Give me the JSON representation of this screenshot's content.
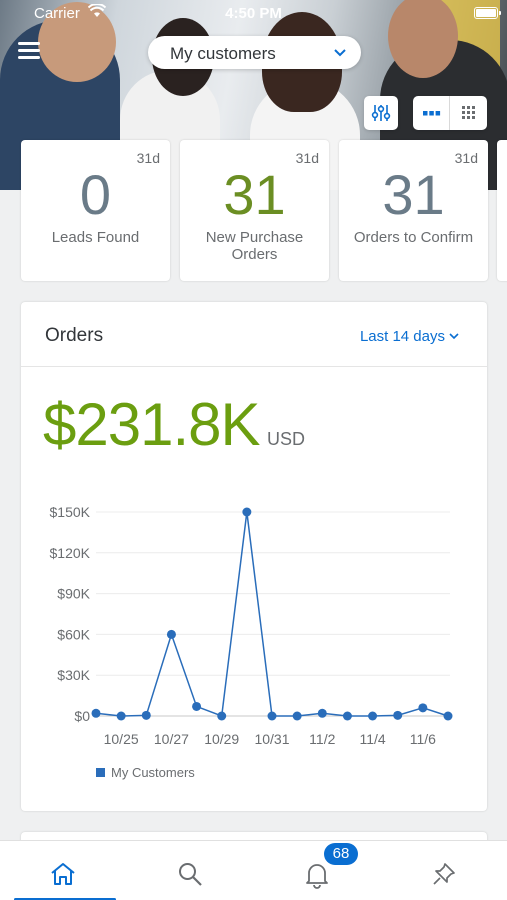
{
  "status_bar": {
    "carrier": "Carrier",
    "time": "4:50 PM"
  },
  "header": {
    "selector_label": "My customers"
  },
  "tiles": [
    {
      "period": "31d",
      "value": "0",
      "label": "Leads Found",
      "value_color": "#6a7b88"
    },
    {
      "period": "31d",
      "value": "31",
      "label": "New Purchase Orders",
      "value_color": "#6b8e23"
    },
    {
      "period": "31d",
      "value": "31",
      "label": "Orders to Confirm",
      "value_color": "#6a7b88"
    }
  ],
  "orders_card": {
    "title": "Orders",
    "period": "Last 14 days",
    "total": "$231.8K",
    "currency": "USD",
    "total_color": "#6b9e10"
  },
  "chart_data": {
    "type": "line",
    "series": [
      {
        "name": "My Customers",
        "color": "#2a6dba",
        "x": [
          "10/24",
          "10/25",
          "10/26",
          "10/27",
          "10/28",
          "10/29",
          "10/30",
          "10/31",
          "11/1",
          "11/2",
          "11/3",
          "11/4",
          "11/5",
          "11/6",
          "11/7"
        ],
        "values": [
          2000,
          0,
          500,
          60000,
          7000,
          0,
          150000,
          0,
          0,
          2000,
          0,
          0,
          500,
          6000,
          0
        ]
      }
    ],
    "x_tick_labels": [
      "10/25",
      "10/27",
      "10/29",
      "10/31",
      "11/2",
      "11/4",
      "11/6"
    ],
    "y_tick_labels": [
      "$0",
      "$30K",
      "$60K",
      "$90K",
      "$120K",
      "$150K"
    ],
    "y_ticks": [
      0,
      30000,
      60000,
      90000,
      120000,
      150000
    ],
    "ylim": [
      0,
      150000
    ],
    "grid": true,
    "legend": "bottom-left"
  },
  "tabbar": {
    "tabs": [
      {
        "name": "home"
      },
      {
        "name": "search"
      },
      {
        "name": "notifications"
      },
      {
        "name": "pins"
      }
    ],
    "notification_count": "68"
  },
  "colors": {
    "accent": "#0a6ed1",
    "series": "#2a6dba"
  }
}
